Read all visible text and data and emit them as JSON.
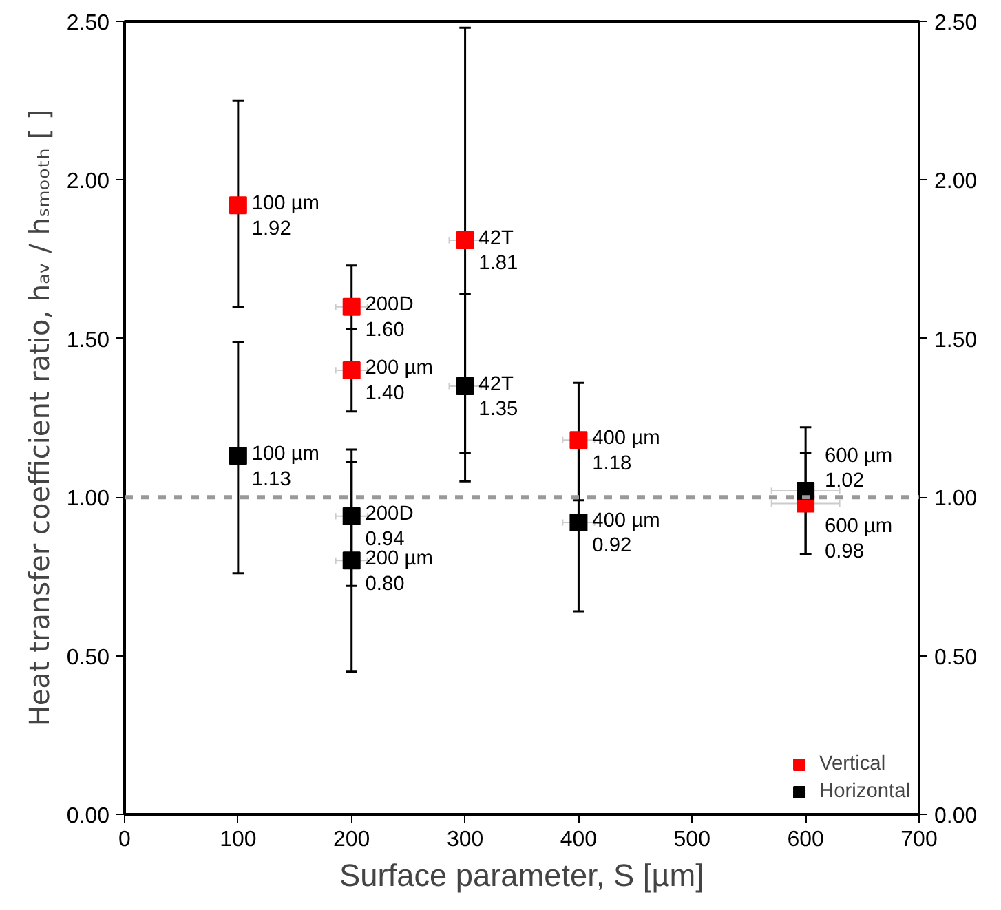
{
  "chart_data": {
    "type": "scatter",
    "xlabel": "Surface parameter, S [µm]",
    "ylabel": "Heat transfer coefficient ratio, hₐᵥ / hₛₘₒₒₜₕ [ ]",
    "x": [
      100,
      200,
      200,
      300,
      400,
      600
    ],
    "series": [
      {
        "name": "Vertical",
        "color": "#ff0000",
        "values": [
          1.92,
          1.6,
          1.4,
          1.81,
          1.18,
          0.98
        ],
        "errors": [
          [
            1.6,
            2.25
          ],
          [
            1.53,
            1.73
          ],
          [
            1.27,
            1.53
          ],
          [
            1.14,
            2.48
          ],
          [
            0.99,
            1.36
          ],
          [
            0.82,
            1.14
          ]
        ],
        "xerrors": [
          null,
          14,
          14,
          14,
          14,
          30
        ]
      },
      {
        "name": "Horizontal",
        "color": "#000000",
        "values": [
          1.13,
          0.94,
          0.8,
          1.35,
          0.92,
          1.02
        ],
        "errors": [
          [
            0.76,
            1.49
          ],
          [
            0.72,
            1.11
          ],
          [
            0.45,
            1.15
          ],
          [
            1.05,
            1.64
          ],
          [
            0.64,
            1.2
          ],
          [
            0.82,
            1.22
          ]
        ],
        "xerrors": [
          null,
          14,
          14,
          14,
          14,
          30
        ]
      }
    ],
    "annotations": [
      {
        "text": "100 µm\n1.92",
        "x": 100,
        "y": 1.92
      },
      {
        "text": "200D\n1.60",
        "x": 200,
        "y": 1.6
      },
      {
        "text": "200 µm\n1.40",
        "x": 200,
        "y": 1.4
      },
      {
        "text": "42T\n1.81",
        "x": 300,
        "y": 1.81
      },
      {
        "text": "400 µm\n1.18",
        "x": 400,
        "y": 1.18
      },
      {
        "text": "600 µm\n0.98",
        "x": 600,
        "y": 0.98
      },
      {
        "text": "100 µm\n1.13",
        "x": 100,
        "y": 1.13
      },
      {
        "text": "200D\n0.94",
        "x": 200,
        "y": 0.94
      },
      {
        "text": "200 µm\n0.80",
        "x": 200,
        "y": 0.8
      },
      {
        "text": "42T\n1.35",
        "x": 300,
        "y": 1.35
      },
      {
        "text": "400 µm\n0.92",
        "x": 400,
        "y": 0.92
      },
      {
        "text": "600 µm\n1.02",
        "x": 600,
        "y": 1.02
      }
    ],
    "ref_lines": [
      {
        "axis": "y",
        "value": 1.0,
        "color": "#999999",
        "line_style": "dashed"
      }
    ],
    "xlim": [
      0,
      700
    ],
    "xticks": [
      0,
      100,
      200,
      300,
      400,
      500,
      600,
      700
    ],
    "ylim": [
      0,
      2.5
    ],
    "yticks": [
      {
        "value": 0,
        "label": "0.00"
      },
      {
        "value": 0.5,
        "label": "0.50"
      },
      {
        "value": 1.0,
        "label": "1.00"
      },
      {
        "value": 1.5,
        "label": "1.50"
      },
      {
        "value": 2.0,
        "label": "2.00"
      },
      {
        "value": 2.5,
        "label": "2.50"
      }
    ],
    "y2lim": [
      0,
      2.5
    ],
    "y2ticks": [
      {
        "value": 0,
        "label": "0.00"
      },
      {
        "value": 0.5,
        "label": "0.50"
      },
      {
        "value": 1.0,
        "label": "1.00"
      },
      {
        "value": 1.5,
        "label": "1.50"
      },
      {
        "value": 2.0,
        "label": "2.00"
      },
      {
        "value": 2.5,
        "label": "2.50"
      }
    ],
    "marker": "square",
    "grid": false,
    "legend": "bottom right"
  }
}
